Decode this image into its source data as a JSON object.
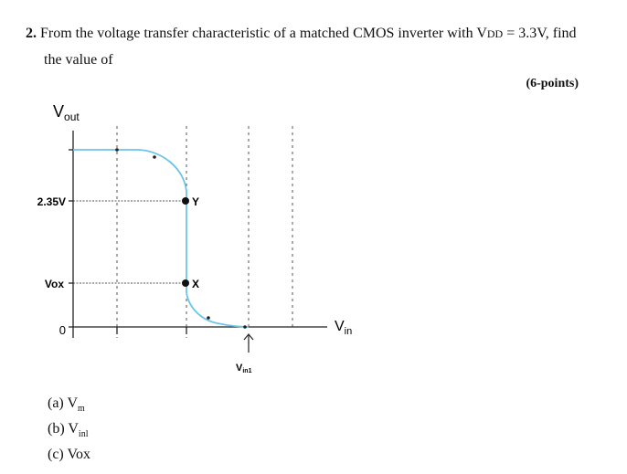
{
  "question": {
    "number": "2.",
    "text_before_vdd": "From the voltage transfer characteristic of a matched CMOS inverter with V",
    "vdd_subscript": "DD",
    "text_after_vdd": " = 3.3V, find",
    "line2": "the value of",
    "points": "(6-points)"
  },
  "figure": {
    "vout_label": "V",
    "vout_sub": "out",
    "vin_label": "V",
    "vin_sub": "in",
    "y_ticks": {
      "v235": "2.35V",
      "vox": "Vox",
      "zero": "0"
    },
    "point_y": "Y",
    "point_x": "X",
    "vin1_label": "V",
    "vin1_sub": "in1",
    "curve_color": "#6ec3ea",
    "axis_color": "#222222"
  },
  "answers": {
    "a": {
      "prefix": "(a) V",
      "sub": "m"
    },
    "b": {
      "prefix": "(b) V",
      "sub": "inl"
    },
    "c": {
      "prefix": "(c) V",
      "sub": "OX",
      "text": "(c) Vox"
    }
  }
}
